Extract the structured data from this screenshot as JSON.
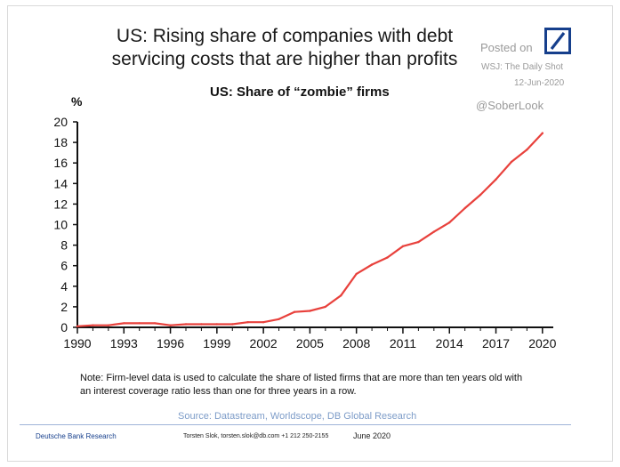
{
  "header": {
    "title_line1": "US: Rising share of companies with debt",
    "title_line2": "servicing costs that are higher than profits",
    "posted_on": "Posted on",
    "wsj": "WSJ: The Daily Shot",
    "date": "12-Jun-2020",
    "handle": "@SoberLook"
  },
  "chart_data": {
    "type": "line",
    "title": "US: Share of “zombie” firms",
    "ylabel": "%",
    "xlabel": "",
    "xlim": [
      1990,
      2020.7
    ],
    "ylim": [
      0,
      20
    ],
    "xticks": [
      1990,
      1993,
      1996,
      1999,
      2002,
      2005,
      2008,
      2011,
      2014,
      2017,
      2020
    ],
    "yticks": [
      0,
      2,
      4,
      6,
      8,
      10,
      12,
      14,
      16,
      18,
      20
    ],
    "grid": false,
    "color": "#e8413c",
    "x": [
      1990,
      1991,
      1992,
      1993,
      1994,
      1995,
      1996,
      1997,
      1998,
      1999,
      2000,
      2001,
      2002,
      2003,
      2004,
      2005,
      2006,
      2007,
      2008,
      2009,
      2010,
      2011,
      2012,
      2013,
      2014,
      2015,
      2016,
      2017,
      2018,
      2019,
      2020
    ],
    "values": [
      0.1,
      0.2,
      0.2,
      0.4,
      0.4,
      0.4,
      0.2,
      0.3,
      0.3,
      0.3,
      0.3,
      0.5,
      0.5,
      0.8,
      1.5,
      1.6,
      2.0,
      3.1,
      5.2,
      6.1,
      6.8,
      7.9,
      8.3,
      9.3,
      10.2,
      11.6,
      12.9,
      14.4,
      16.1,
      17.3,
      18.9
    ]
  },
  "note": {
    "line1": "Note: Firm-level data is used to calculate the share of listed firms that are more than ten years old with",
    "line2": "an interest coverage ratio less than one for three years in a row."
  },
  "source": "Source: Datastream, Worldscope, DB Global Research",
  "footer": {
    "left": "Deutsche Bank Research",
    "contact": "Torsten Slok, torsten.slok@db.com +1 212 250-2155",
    "date": "June 2020"
  }
}
